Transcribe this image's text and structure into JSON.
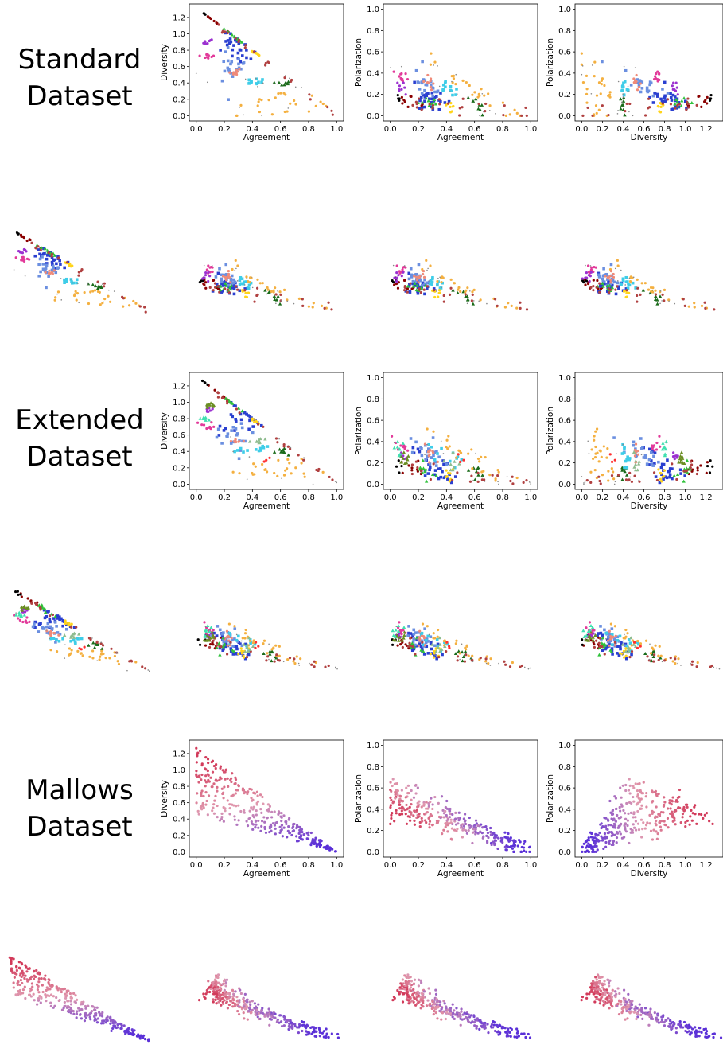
{
  "rows": [
    {
      "label_lines": [
        "Standard",
        "Dataset"
      ],
      "palette": "categorical"
    },
    {
      "label_lines": [
        "Extended",
        "Dataset"
      ],
      "palette": "categorical_extended"
    },
    {
      "label_lines": [
        "Mallows",
        "Dataset"
      ],
      "palette": "gradient"
    }
  ],
  "colors": {
    "categorical": [
      "#8b0000",
      "#000000",
      "#e23a9a",
      "#9b30d0",
      "#2a3fd0",
      "#6b8fe0",
      "#2ec23a",
      "#1a6b1a",
      "#3ecde8",
      "#ffd41a",
      "#f4b040",
      "#f08a78",
      "#b04040",
      "#888888"
    ],
    "extended_extra": [
      "#6b8e23",
      "#40e0b0",
      "#8fbc8f",
      "#ff3030"
    ],
    "gradient_from": "#5a30d8",
    "gradient_mid": "#e09ab0",
    "gradient_to": "#d23a5a"
  },
  "chart_data": [
    {
      "type": "scatter",
      "panel": "Standard / Agreement vs Diversity",
      "xlabel": "Agreement",
      "ylabel": "Diversity",
      "xlim": [
        0.0,
        1.0
      ],
      "ylim": [
        0.0,
        1.3
      ],
      "xticks": [
        "0.0",
        "0.2",
        "0.4",
        "0.6",
        "0.8",
        "1.0"
      ],
      "yticks": [
        "0.0",
        "0.2",
        "0.4",
        "0.6",
        "0.8",
        "1.0",
        "1.2"
      ]
    },
    {
      "type": "scatter",
      "panel": "Standard / Agreement vs Polarization",
      "xlabel": "Agreement",
      "ylabel": "Polarization",
      "xlim": [
        0.0,
        1.0
      ],
      "ylim": [
        0.0,
        1.0
      ],
      "xticks": [
        "0.0",
        "0.2",
        "0.4",
        "0.6",
        "0.8",
        "1.0"
      ],
      "yticks": [
        "0.0",
        "0.2",
        "0.4",
        "0.6",
        "0.8",
        "1.0"
      ]
    },
    {
      "type": "scatter",
      "panel": "Standard / Diversity vs Polarization",
      "xlabel": "Diversity",
      "ylabel": "Polarization",
      "xlim": [
        0.0,
        1.3
      ],
      "ylim": [
        0.0,
        1.0
      ],
      "xticks": [
        "0.0",
        "0.2",
        "0.4",
        "0.6",
        "0.8",
        "1.0",
        "1.2"
      ],
      "yticks": [
        "0.0",
        "0.2",
        "0.4",
        "0.6",
        "0.8",
        "1.0"
      ]
    },
    {
      "type": "scatter",
      "panel": "Standard / map embedding 1"
    },
    {
      "type": "scatter",
      "panel": "Standard / map embedding 2"
    },
    {
      "type": "scatter",
      "panel": "Standard / map embedding 3"
    },
    {
      "type": "scatter",
      "panel": "Standard / map embedding 4"
    },
    {
      "type": "scatter",
      "panel": "Extended / Agreement vs Diversity",
      "xlabel": "Agreement",
      "ylabel": "Diversity",
      "xlim": [
        0.0,
        1.0
      ],
      "ylim": [
        0.0,
        1.3
      ],
      "xticks": [
        "0.0",
        "0.2",
        "0.4",
        "0.6",
        "0.8",
        "1.0"
      ],
      "yticks": [
        "0.0",
        "0.2",
        "0.4",
        "0.6",
        "0.8",
        "1.0",
        "1.2"
      ]
    },
    {
      "type": "scatter",
      "panel": "Extended / Agreement vs Polarization",
      "xlabel": "Agreement",
      "ylabel": "Polarization",
      "xlim": [
        0.0,
        1.0
      ],
      "ylim": [
        0.0,
        1.0
      ],
      "xticks": [
        "0.0",
        "0.2",
        "0.4",
        "0.6",
        "0.8",
        "1.0"
      ],
      "yticks": [
        "0.0",
        "0.2",
        "0.4",
        "0.6",
        "0.8",
        "1.0"
      ]
    },
    {
      "type": "scatter",
      "panel": "Extended / Diversity vs Polarization",
      "xlabel": "Diversity",
      "ylabel": "Polarization",
      "xlim": [
        0.0,
        1.3
      ],
      "ylim": [
        0.0,
        1.0
      ],
      "xticks": [
        "0.0",
        "0.2",
        "0.4",
        "0.6",
        "0.8",
        "1.0",
        "1.2"
      ],
      "yticks": [
        "0.0",
        "0.2",
        "0.4",
        "0.6",
        "0.8",
        "1.0"
      ]
    },
    {
      "type": "scatter",
      "panel": "Extended / map embedding 1"
    },
    {
      "type": "scatter",
      "panel": "Extended / map embedding 2"
    },
    {
      "type": "scatter",
      "panel": "Extended / map embedding 3"
    },
    {
      "type": "scatter",
      "panel": "Extended / map embedding 4"
    },
    {
      "type": "scatter",
      "panel": "Mallows / Agreement vs Diversity",
      "xlabel": "Agreement",
      "ylabel": "Diversity",
      "xlim": [
        0.0,
        1.0
      ],
      "ylim": [
        0.0,
        1.3
      ],
      "xticks": [
        "0.0",
        "0.2",
        "0.4",
        "0.6",
        "0.8",
        "1.0"
      ],
      "yticks": [
        "0.0",
        "0.2",
        "0.4",
        "0.6",
        "0.8",
        "1.0",
        "1.2"
      ]
    },
    {
      "type": "scatter",
      "panel": "Mallows / Agreement vs Polarization",
      "xlabel": "Agreement",
      "ylabel": "Polarization",
      "xlim": [
        0.0,
        1.0
      ],
      "ylim": [
        0.0,
        1.0
      ],
      "xticks": [
        "0.0",
        "0.2",
        "0.4",
        "0.6",
        "0.8",
        "1.0"
      ],
      "yticks": [
        "0.0",
        "0.2",
        "0.4",
        "0.6",
        "0.8",
        "1.0"
      ]
    },
    {
      "type": "scatter",
      "panel": "Mallows / Diversity vs Polarization",
      "xlabel": "Diversity",
      "ylabel": "Polarization",
      "xlim": [
        0.0,
        1.3
      ],
      "ylim": [
        0.0,
        1.0
      ],
      "xticks": [
        "0.0",
        "0.2",
        "0.4",
        "0.6",
        "0.8",
        "1.0",
        "1.2"
      ],
      "yticks": [
        "0.0",
        "0.2",
        "0.4",
        "0.6",
        "0.8",
        "1.0"
      ]
    },
    {
      "type": "scatter",
      "panel": "Mallows / map embedding 1"
    },
    {
      "type": "scatter",
      "panel": "Mallows / map embedding 2"
    },
    {
      "type": "scatter",
      "panel": "Mallows / map embedding 3"
    },
    {
      "type": "scatter",
      "panel": "Mallows / map embedding 4"
    }
  ]
}
